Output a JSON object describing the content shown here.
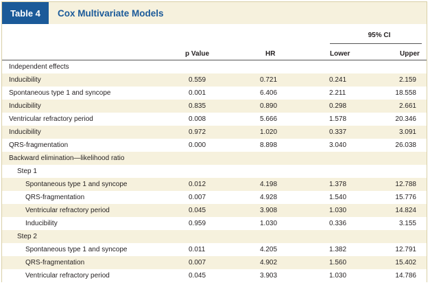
{
  "table": {
    "tag": "Table 4",
    "title": "Cox Multivariate Models",
    "ci_label": "95% CI",
    "columns": {
      "p": "p Value",
      "hr": "HR",
      "lower": "Lower",
      "upper": "Upper"
    },
    "colors": {
      "tag_bg": "#1b5a99",
      "title": "#1b5a99",
      "shade": "#f6f1dd"
    },
    "rows": [
      {
        "label": "Independent effects",
        "indent": 0,
        "p": "",
        "hr": "",
        "lower": "",
        "upper": ""
      },
      {
        "label": "Inducibility",
        "indent": 0,
        "p": "0.559",
        "hr": "0.721",
        "lower": "0.241",
        "upper": "2.159"
      },
      {
        "label": "Spontaneous type 1 and syncope",
        "indent": 0,
        "p": "0.001",
        "hr": "6.406",
        "lower": "2.211",
        "upper": "18.558"
      },
      {
        "label": "Inducibility",
        "indent": 0,
        "p": "0.835",
        "hr": "0.890",
        "lower": "0.298",
        "upper": "2.661"
      },
      {
        "label": "Ventricular refractory period",
        "indent": 0,
        "p": "0.008",
        "hr": "5.666",
        "lower": "1.578",
        "upper": "20.346"
      },
      {
        "label": "Inducibility",
        "indent": 0,
        "p": "0.972",
        "hr": "1.020",
        "lower": "0.337",
        "upper": "3.091"
      },
      {
        "label": "QRS-fragmentation",
        "indent": 0,
        "p": "0.000",
        "hr": "8.898",
        "lower": "3.040",
        "upper": "26.038"
      },
      {
        "label": "Backward elimination—likelihood ratio",
        "indent": 0,
        "p": "",
        "hr": "",
        "lower": "",
        "upper": ""
      },
      {
        "label": "Step 1",
        "indent": 1,
        "p": "",
        "hr": "",
        "lower": "",
        "upper": ""
      },
      {
        "label": "Spontaneous type 1 and syncope",
        "indent": 2,
        "p": "0.012",
        "hr": "4.198",
        "lower": "1.378",
        "upper": "12.788"
      },
      {
        "label": "QRS-fragmentation",
        "indent": 2,
        "p": "0.007",
        "hr": "4.928",
        "lower": "1.540",
        "upper": "15.776"
      },
      {
        "label": "Ventricular refractory period",
        "indent": 2,
        "p": "0.045",
        "hr": "3.908",
        "lower": "1.030",
        "upper": "14.824"
      },
      {
        "label": "Inducibility",
        "indent": 2,
        "p": "0.959",
        "hr": "1.030",
        "lower": "0.336",
        "upper": "3.155"
      },
      {
        "label": "Step 2",
        "indent": 1,
        "p": "",
        "hr": "",
        "lower": "",
        "upper": ""
      },
      {
        "label": "Spontaneous type 1 and syncope",
        "indent": 2,
        "p": "0.011",
        "hr": "4.205",
        "lower": "1.382",
        "upper": "12.791"
      },
      {
        "label": "QRS-fragmentation",
        "indent": 2,
        "p": "0.007",
        "hr": "4.902",
        "lower": "1.560",
        "upper": "15.402"
      },
      {
        "label": "Ventricular refractory period",
        "indent": 2,
        "p": "0.045",
        "hr": "3.903",
        "lower": "1.030",
        "upper": "14.786"
      }
    ]
  }
}
